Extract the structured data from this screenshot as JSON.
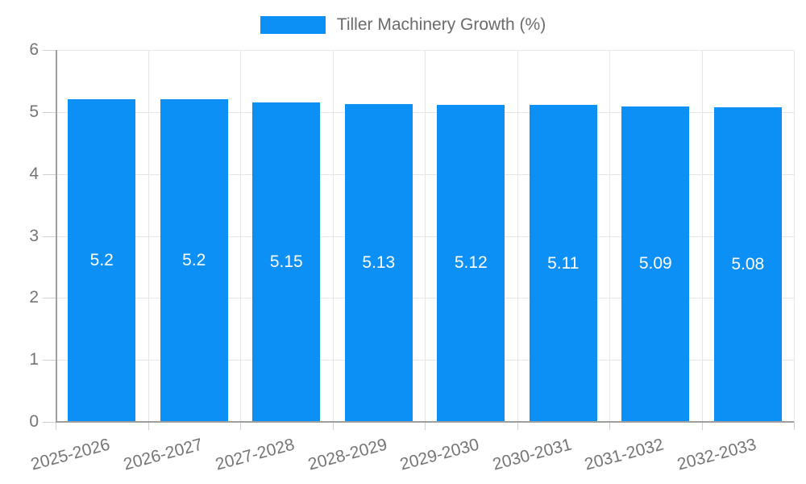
{
  "legend": {
    "label": "Tiller Machinery Growth (%)"
  },
  "colors": {
    "bar": "#0d90f5",
    "grid": "#e6e6e6",
    "axis": "#9e9e9e",
    "tick": "#cfcfcf",
    "axis_label": "#757575",
    "legend_text": "#6b6b6b",
    "value_label": "#ffffff",
    "background": "#ffffff"
  },
  "chart_data": {
    "type": "bar",
    "title": "Tiller Machinery Growth (%)",
    "categories": [
      "2025-2026",
      "2026-2027",
      "2027-2028",
      "2028-2029",
      "2029-2030",
      "2030-2031",
      "2031-2032",
      "2032-2033"
    ],
    "series": [
      {
        "name": "Tiller Machinery Growth (%)",
        "values": [
          5.2,
          5.2,
          5.15,
          5.13,
          5.12,
          5.11,
          5.09,
          5.08
        ]
      }
    ],
    "values": [
      5.2,
      5.2,
      5.15,
      5.13,
      5.12,
      5.11,
      5.09,
      5.08
    ],
    "value_labels": [
      "5.2",
      "5.2",
      "5.15",
      "5.13",
      "5.12",
      "5.11",
      "5.09",
      "5.08"
    ],
    "xlabel": "",
    "ylabel": "",
    "ylim": [
      0,
      6
    ],
    "yticks": [
      0,
      1,
      2,
      3,
      4,
      5,
      6
    ],
    "grid": true,
    "legend_position": "top",
    "value_labels_position": "center-inside"
  }
}
